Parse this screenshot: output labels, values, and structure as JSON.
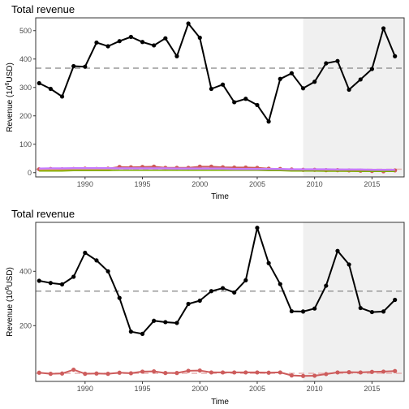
{
  "chart_data": [
    {
      "type": "line",
      "title": "Total revenue",
      "xlabel": "Time",
      "ylabel": "Revenue (10^6 USD)",
      "ylabel_base": "Revenue (10",
      "ylabel_sup": "6",
      "ylabel_tail": "USD)",
      "xlim": [
        1985.7,
        2017.8
      ],
      "ylim": [
        -15,
        545
      ],
      "xticks": [
        1990,
        1995,
        2000,
        2005,
        2010,
        2015
      ],
      "yticks": [
        0,
        100,
        200,
        300,
        400,
        500
      ],
      "shaded_region": [
        2009,
        2017.8
      ],
      "grid": false,
      "series": [
        {
          "color": "#000000",
          "x": [
            1986,
            1987,
            1988,
            1989,
            1990,
            1991,
            1992,
            1993,
            1994,
            1995,
            1996,
            1997,
            1998,
            1999,
            2000,
            2001,
            2002,
            2003,
            2004,
            2005,
            2006,
            2007,
            2008,
            2009,
            2010,
            2011,
            2012,
            2013,
            2014,
            2015,
            2016,
            2017
          ],
          "values": [
            315,
            295,
            268,
            375,
            373,
            458,
            445,
            463,
            478,
            460,
            448,
            473,
            410,
            525,
            475,
            295,
            310,
            248,
            260,
            238,
            180,
            330,
            350,
            297,
            320,
            385,
            393,
            292,
            328,
            365,
            508,
            410
          ],
          "points": true,
          "width": 2
        },
        {
          "color": "#cd5c5c",
          "x": [
            1986,
            1987,
            1988,
            1989,
            1990,
            1991,
            1992,
            1993,
            1994,
            1995,
            1996,
            1997,
            1998,
            1999,
            2000,
            2001,
            2002,
            2003,
            2004,
            2005,
            2006,
            2007,
            2008,
            2009,
            2010,
            2011,
            2012,
            2013,
            2014,
            2015,
            2016,
            2017
          ],
          "values": [
            12,
            13,
            12,
            13,
            14,
            13,
            14,
            20,
            19,
            20,
            21,
            17,
            17,
            17,
            21,
            21,
            19,
            18,
            18,
            17,
            14,
            13,
            11,
            10,
            10,
            9,
            9,
            8,
            7,
            6,
            5,
            8
          ],
          "points": true,
          "width": 2
        },
        {
          "color": "#d9a441",
          "x": [
            1986,
            1987,
            1988,
            1989,
            1990,
            1991,
            1992,
            1993,
            1994,
            1995,
            1996,
            1997,
            1998,
            1999,
            2000,
            2001,
            2002,
            2003,
            2004,
            2005,
            2006,
            2007,
            2008,
            2009,
            2010,
            2011,
            2012,
            2013,
            2014,
            2015,
            2016,
            2017
          ],
          "values": [
            9,
            10,
            9,
            10,
            11,
            10,
            11,
            15,
            14,
            15,
            16,
            13,
            13,
            13,
            16,
            16,
            14,
            13,
            13,
            12,
            10,
            9,
            8,
            7,
            7,
            6,
            6,
            5,
            5,
            4,
            4,
            6
          ],
          "points": false,
          "width": 1.5
        },
        {
          "color": "#7cae00",
          "x": [
            1986,
            1987,
            1988,
            1989,
            1990,
            1991,
            1992,
            1993,
            1994,
            1995,
            1996,
            1997,
            1998,
            1999,
            2000,
            2001,
            2002,
            2003,
            2004,
            2005,
            2006,
            2007,
            2008,
            2009,
            2010,
            2011,
            2012,
            2013,
            2014,
            2015,
            2016,
            2017
          ],
          "values": [
            6,
            6,
            6,
            7,
            7,
            7,
            7,
            8,
            8,
            8,
            8,
            8,
            8,
            8,
            8,
            8,
            8,
            8,
            8,
            8,
            7,
            7,
            6,
            6,
            6,
            5,
            5,
            5,
            4,
            4,
            4,
            4
          ],
          "points": false,
          "width": 1.5
        },
        {
          "color": "#c77cff",
          "x": [
            1986,
            1987,
            1988,
            1989,
            1990,
            1991,
            1992,
            1993,
            1994,
            1995,
            1996,
            1997,
            1998,
            1999,
            2000,
            2001,
            2002,
            2003,
            2004,
            2005,
            2006,
            2007,
            2008,
            2009,
            2010,
            2011,
            2012,
            2013,
            2014,
            2015,
            2016,
            2017
          ],
          "values": [
            14,
            15,
            15,
            16,
            16,
            16,
            16,
            15,
            15,
            15,
            15,
            15,
            14,
            14,
            14,
            14,
            14,
            13,
            13,
            13,
            13,
            13,
            12,
            12,
            12,
            12,
            11,
            11,
            11,
            10,
            10,
            10
          ],
          "points": false,
          "width": 2.5
        }
      ],
      "reference_lines": [
        {
          "y": 368,
          "color": "#999999"
        },
        {
          "y": 12,
          "color": "#e8b0b0"
        }
      ]
    },
    {
      "type": "line",
      "title": "Total revenue",
      "xlabel": "Time",
      "ylabel": "Revenue (10^6 USD)",
      "ylabel_base": "Revenue (10",
      "ylabel_sup": "6",
      "ylabel_tail": "USD)",
      "xlim": [
        1985.7,
        2017.8
      ],
      "ylim": [
        -5,
        580
      ],
      "xticks": [
        1990,
        1995,
        2000,
        2005,
        2010,
        2015
      ],
      "yticks": [
        200,
        400
      ],
      "shaded_region": [
        2009,
        2017.8
      ],
      "grid": false,
      "series": [
        {
          "color": "#000000",
          "x": [
            1986,
            1987,
            1988,
            1989,
            1990,
            1991,
            1992,
            1993,
            1994,
            1995,
            1996,
            1997,
            1998,
            1999,
            2000,
            2001,
            2002,
            2003,
            2004,
            2005,
            2006,
            2007,
            2008,
            2009,
            2010,
            2011,
            2012,
            2013,
            2014,
            2015,
            2016,
            2017
          ],
          "values": [
            365,
            357,
            352,
            380,
            468,
            440,
            400,
            302,
            178,
            170,
            218,
            213,
            210,
            280,
            292,
            327,
            338,
            322,
            367,
            560,
            430,
            353,
            253,
            252,
            263,
            347,
            475,
            425,
            265,
            250,
            252,
            295
          ],
          "points": true,
          "width": 2
        },
        {
          "color": "#cd5c5c",
          "x": [
            1986,
            1987,
            1988,
            1989,
            1990,
            1991,
            1992,
            1993,
            1994,
            1995,
            1996,
            1997,
            1998,
            1999,
            2000,
            2001,
            2002,
            2003,
            2004,
            2005,
            2006,
            2007,
            2008,
            2009,
            2010,
            2011,
            2012,
            2013,
            2014,
            2015,
            2016,
            2017
          ],
          "values": [
            27,
            23,
            24,
            38,
            23,
            24,
            23,
            27,
            25,
            31,
            32,
            26,
            26,
            34,
            35,
            28,
            28,
            28,
            28,
            28,
            27,
            28,
            17,
            15,
            16,
            22,
            28,
            29,
            28,
            30,
            31,
            33
          ],
          "points": true,
          "width": 2
        }
      ],
      "reference_lines": [
        {
          "y": 327,
          "color": "#999999"
        },
        {
          "y": 25,
          "color": "#e8b0b0"
        }
      ]
    }
  ]
}
